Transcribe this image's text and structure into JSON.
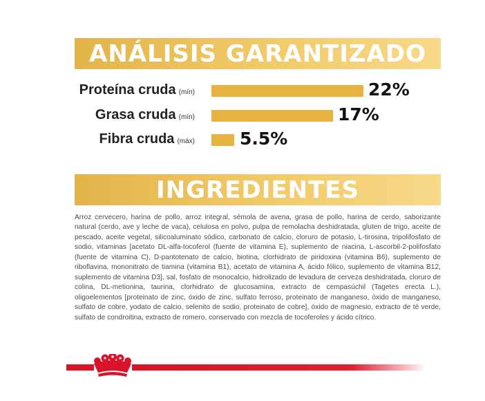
{
  "analysis": {
    "title": "ANÁLISIS GARANTIZADO",
    "rows": [
      {
        "label": "Proteína cruda",
        "qualifier": "(mín)",
        "value": "22%",
        "fill": 0.22
      },
      {
        "label": "Grasa cruda",
        "qualifier": "(mín)",
        "value": "17%",
        "fill": 0.17
      },
      {
        "label": "Fibra cruda",
        "qualifier": "(máx)",
        "value": "5.5%",
        "fill": 0.055
      }
    ],
    "bar_color": "#e7b441"
  },
  "ingredients": {
    "title": "INGREDIENTES",
    "text": "Arroz cervecero, harina de pollo, arroz integral, sémola de avena, grasa de pollo, harina de cerdo, saborizante natural (cerdo, ave y leche de vaca), celulosa en polvo, pulpa de remolacha deshidratada, gluten de trigo, aceite de pescado, aceite vegetal, silicoaluminato sódico, carbonato de calcio, cloruro de potasio, L-tirosina, tripolifosfato de sodio, vitaminas [acetato DL-alfa-tocoferol (fuente de vitamina E), suplemento de niacina, L-ascorbil-2-polifosfato (fuente de vitamina C), D-pantotenato de calcio, biotina, clorhidrato de piridoxina (vitamina B6), suplemento de riboflavina, mononitrato de tiamina (vitamina B1), acetato de vitamina A, ácido fólico, suplemento de vitamina B12, suplemento de vitamina D3], sal, fosfato de monocalcio, hidrolizado de levadura de cerveza deshidratada, cloruro de colina, DL-metionina, taurina, clorhidrato de glucosamina, extracto de cempasúchil (Tagetes erecta L.), oligoelementos [proteinato de zinc, óxido de zinc, sulfato ferroso, proteinato de manganeso, óxido de manganeso, sulfato de cobre, yodato de calcio, selenito de sodio, proteinato de cobre], óxido de magnesio, extracto de té verde, sulfato de condroitina, extracto de romero, conservado con mezcla de tocoferoles y ácido cítrico."
  },
  "footer": {
    "logo": "crown-icon",
    "accent_color": "#d9132a"
  },
  "colors": {
    "banner": "#e9bd55",
    "banner_text": "#ffffff"
  }
}
